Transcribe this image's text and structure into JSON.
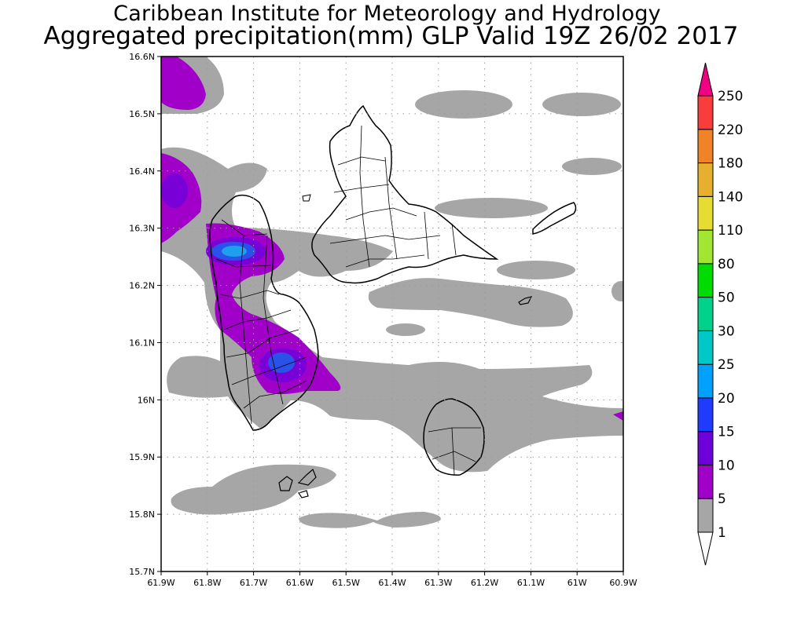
{
  "title": {
    "line1": "Caribbean Institute for Meteorology and Hydrology",
    "line2": "Aggregated precipitation(mm) GLP Valid 19Z 26/02 2017"
  },
  "map": {
    "lon_range": [
      -61.9,
      -60.9
    ],
    "lat_range": [
      15.7,
      16.6
    ],
    "lon_ticks": [
      {
        "value": -61.9,
        "label": "61.9W"
      },
      {
        "value": -61.8,
        "label": "61.8W"
      },
      {
        "value": -61.7,
        "label": "61.7W"
      },
      {
        "value": -61.6,
        "label": "61.6W"
      },
      {
        "value": -61.5,
        "label": "61.5W"
      },
      {
        "value": -61.4,
        "label": "61.4W"
      },
      {
        "value": -61.3,
        "label": "61.3W"
      },
      {
        "value": -61.2,
        "label": "61.2W"
      },
      {
        "value": -61.1,
        "label": "61.1W"
      },
      {
        "value": -61.0,
        "label": "61W"
      },
      {
        "value": -60.9,
        "label": "60.9W"
      }
    ],
    "lat_ticks": [
      {
        "value": 16.6,
        "label": "16.6N"
      },
      {
        "value": 16.5,
        "label": "16.5N"
      },
      {
        "value": 16.4,
        "label": "16.4N"
      },
      {
        "value": 16.3,
        "label": "16.3N"
      },
      {
        "value": 16.2,
        "label": "16.2N"
      },
      {
        "value": 16.1,
        "label": "16.1N"
      },
      {
        "value": 16.0,
        "label": "16N"
      },
      {
        "value": 15.9,
        "label": "15.9N"
      },
      {
        "value": 15.8,
        "label": "15.8N"
      },
      {
        "value": 15.7,
        "label": "15.7N"
      }
    ],
    "grid": true
  },
  "legend": {
    "levels": [
      {
        "label": "1",
        "color": "#ffffff"
      },
      {
        "label": "5",
        "color": "#a6a6a6"
      },
      {
        "label": "10",
        "color": "#a000c8"
      },
      {
        "label": "15",
        "color": "#6e00dc"
      },
      {
        "label": "20",
        "color": "#1e3cff"
      },
      {
        "label": "25",
        "color": "#00a0ff"
      },
      {
        "label": "30",
        "color": "#00c8c8"
      },
      {
        "label": "50",
        "color": "#00d28c"
      },
      {
        "label": "80",
        "color": "#00dc00"
      },
      {
        "label": "110",
        "color": "#a0e632"
      },
      {
        "label": "140",
        "color": "#e6dc32"
      },
      {
        "label": "180",
        "color": "#e6af2d"
      },
      {
        "label": "220",
        "color": "#f08228"
      },
      {
        "label": "250",
        "color": "#fa3c3c"
      }
    ],
    "top_color": "#f00082"
  }
}
